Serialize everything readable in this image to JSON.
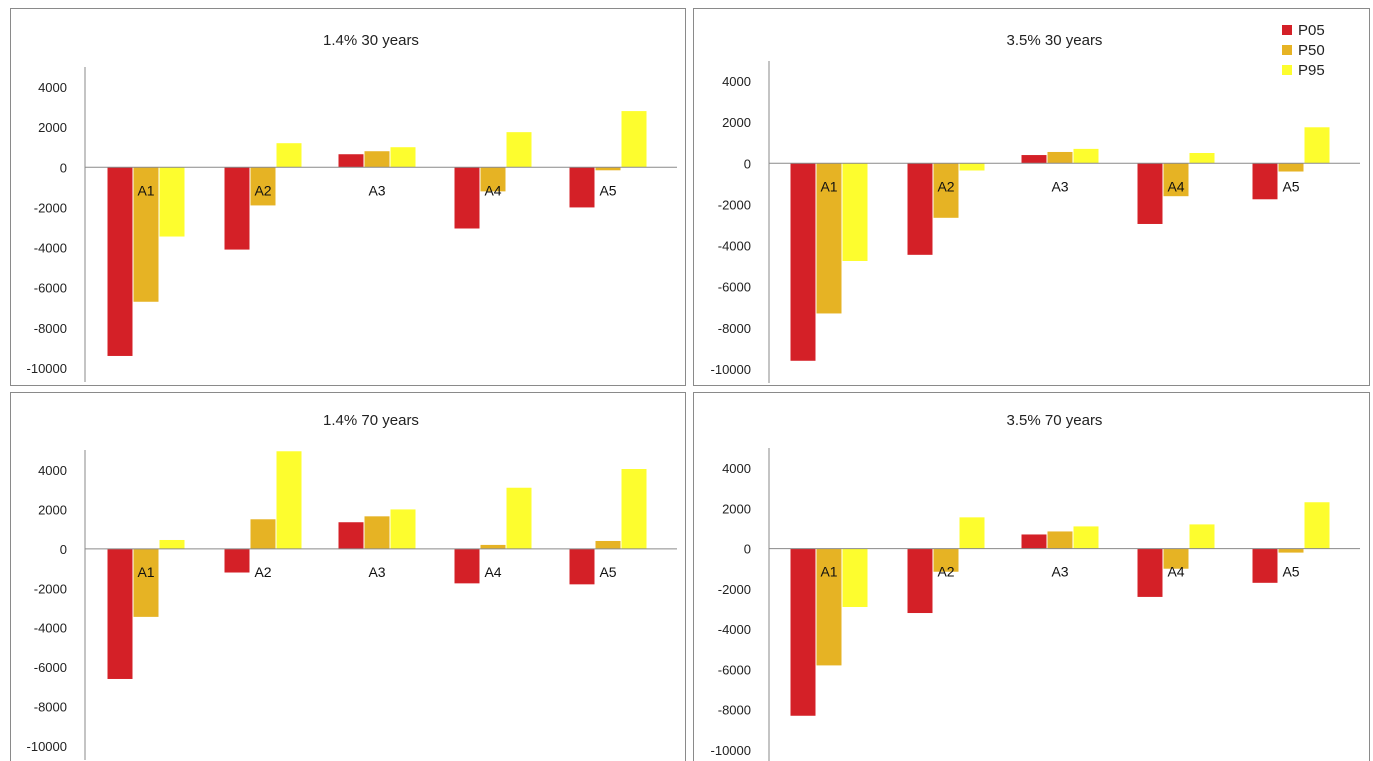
{
  "legend": {
    "items": [
      {
        "name": "P05",
        "color": "#d42027"
      },
      {
        "name": "P50",
        "color": "#e6b324"
      },
      {
        "name": "P95",
        "color": "#fdfd2e"
      }
    ]
  },
  "chart_data": [
    {
      "type": "bar",
      "title": "1.4% 30 years",
      "categories": [
        "A1",
        "A2",
        "A3",
        "A4",
        "A5"
      ],
      "ylim": [
        -10000,
        5000
      ],
      "yticks": [
        4000,
        2000,
        0,
        -2000,
        -4000,
        -6000,
        -8000,
        -10000
      ],
      "ytick_labels": [
        "4000",
        "2000",
        "0",
        "-2000",
        "-4000",
        "-6000",
        "-8000",
        "-10000"
      ],
      "series": [
        {
          "name": "P05",
          "color": "#d42027",
          "values": [
            -9400,
            -4100,
            650,
            -3050,
            -2000
          ]
        },
        {
          "name": "P50",
          "color": "#e6b324",
          "values": [
            -6700,
            -1900,
            800,
            -1200,
            -150
          ]
        },
        {
          "name": "P95",
          "color": "#fdfd2e",
          "values": [
            -3450,
            1200,
            1000,
            1750,
            2800
          ]
        }
      ]
    },
    {
      "type": "bar",
      "title": "3.5% 30 years",
      "categories": [
        "A1",
        "A2",
        "A3",
        "A4",
        "A5"
      ],
      "ylim": [
        -10000,
        5000
      ],
      "yticks": [
        4000,
        2000,
        0,
        -2000,
        -4000,
        -6000,
        -8000,
        -10000
      ],
      "ytick_labels": [
        "4000",
        "2000",
        "0",
        "-2000",
        "-4000",
        "-6000",
        "-8000",
        "-10000"
      ],
      "series": [
        {
          "name": "P05",
          "color": "#d42027",
          "values": [
            -9600,
            -4450,
            400,
            -2950,
            -1750
          ]
        },
        {
          "name": "P50",
          "color": "#e6b324",
          "values": [
            -7300,
            -2650,
            550,
            -1600,
            -400
          ]
        },
        {
          "name": "P95",
          "color": "#fdfd2e",
          "values": [
            -4750,
            -350,
            700,
            500,
            1750
          ]
        }
      ]
    },
    {
      "type": "bar",
      "title": "1.4% 70 years",
      "categories": [
        "A1",
        "A2",
        "A3",
        "A4",
        "A5"
      ],
      "ylim": [
        -10000,
        5000
      ],
      "yticks": [
        4000,
        2000,
        0,
        -2000,
        -4000,
        -6000,
        -8000,
        -10000
      ],
      "ytick_labels": [
        "4000",
        "2000",
        "0",
        "-2000",
        "-4000",
        "-6000",
        "-8000",
        "-10000"
      ],
      "series": [
        {
          "name": "P05",
          "color": "#d42027",
          "values": [
            -6600,
            -1200,
            1350,
            -1750,
            -1800
          ]
        },
        {
          "name": "P50",
          "color": "#e6b324",
          "values": [
            -3450,
            1500,
            1650,
            200,
            400
          ]
        },
        {
          "name": "P95",
          "color": "#fdfd2e",
          "values": [
            450,
            4950,
            2000,
            3100,
            4050
          ]
        }
      ]
    },
    {
      "type": "bar",
      "title": "3.5% 70 years",
      "categories": [
        "A1",
        "A2",
        "A3",
        "A4",
        "A5"
      ],
      "ylim": [
        -10000,
        5000
      ],
      "yticks": [
        4000,
        2000,
        0,
        -2000,
        -4000,
        -6000,
        -8000,
        -10000
      ],
      "ytick_labels": [
        "4000",
        "2000",
        "0",
        "-2000",
        "-4000",
        "-6000",
        "-8000",
        "-10000"
      ],
      "series": [
        {
          "name": "P05",
          "color": "#d42027",
          "values": [
            -8300,
            -3200,
            700,
            -2400,
            -1700
          ]
        },
        {
          "name": "P50",
          "color": "#e6b324",
          "values": [
            -5800,
            -1150,
            850,
            -1000,
            -200
          ]
        },
        {
          "name": "P95",
          "color": "#fdfd2e",
          "values": [
            -2900,
            1550,
            1100,
            1200,
            2300
          ]
        }
      ]
    }
  ]
}
